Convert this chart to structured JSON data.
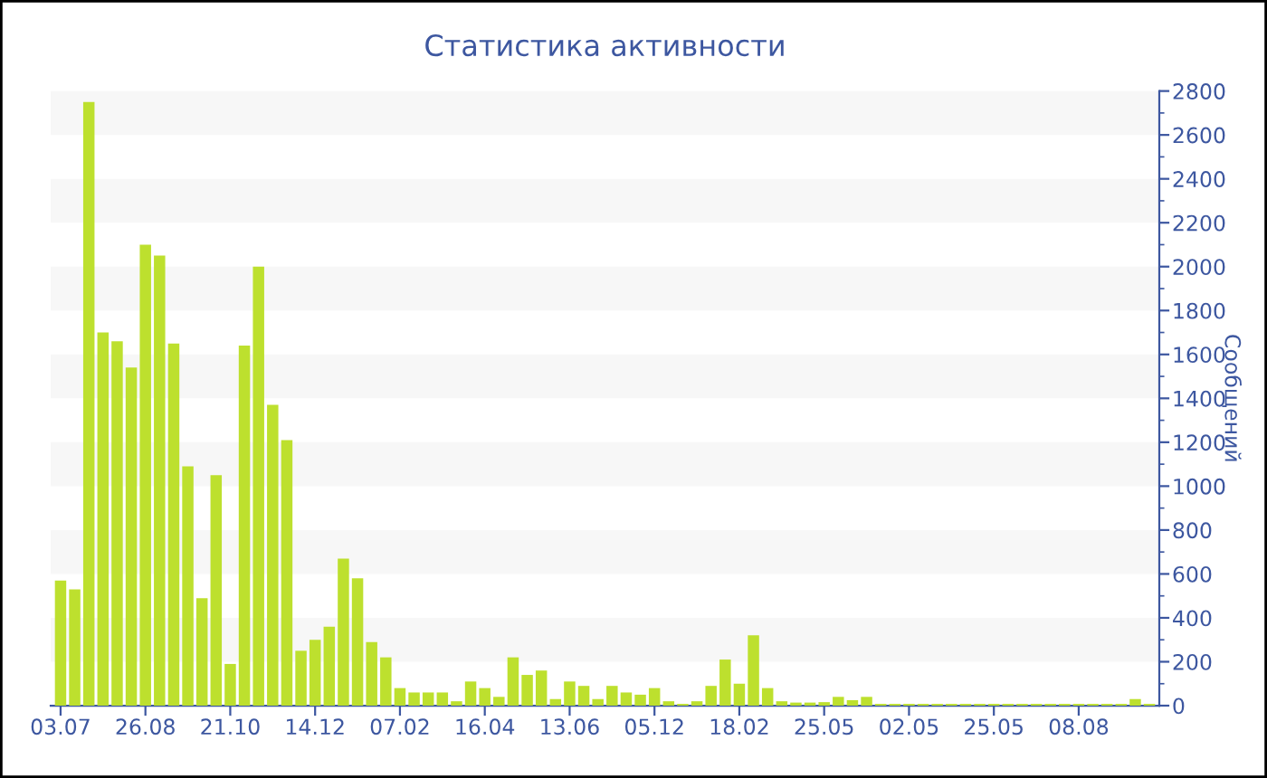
{
  "chart_data": {
    "type": "bar",
    "title": "Статистика активности",
    "ylabel": "Сообщений",
    "categories": [
      "03.07",
      null,
      null,
      null,
      null,
      null,
      "26.08",
      null,
      null,
      null,
      null,
      null,
      "21.10",
      null,
      null,
      null,
      null,
      null,
      "14.12",
      null,
      null,
      null,
      null,
      null,
      "07.02",
      null,
      null,
      null,
      null,
      null,
      "16.04",
      null,
      null,
      null,
      null,
      null,
      "13.06",
      null,
      null,
      null,
      null,
      null,
      "05.12",
      null,
      null,
      null,
      null,
      null,
      "18.02",
      null,
      null,
      null,
      null,
      null,
      "25.05",
      null,
      null,
      null,
      null,
      null,
      "02.05",
      null,
      null,
      null,
      null,
      null,
      "25.05",
      null,
      null,
      null,
      null,
      null,
      "08.08",
      null,
      null,
      null,
      null,
      null
    ],
    "values": [
      570,
      530,
      2750,
      1700,
      1660,
      1540,
      2100,
      2050,
      1650,
      1090,
      490,
      1050,
      190,
      1640,
      2000,
      1370,
      1210,
      250,
      300,
      360,
      670,
      580,
      290,
      220,
      80,
      60,
      60,
      60,
      20,
      110,
      80,
      40,
      220,
      140,
      160,
      30,
      110,
      90,
      30,
      90,
      60,
      50,
      80,
      20,
      8,
      20,
      90,
      210,
      100,
      320,
      80,
      20,
      14,
      14,
      16,
      40,
      25,
      40,
      8,
      8,
      8,
      8,
      8,
      8,
      8,
      8,
      8,
      8,
      8,
      8,
      8,
      8,
      8,
      8,
      8,
      8,
      30,
      8
    ],
    "color": "#bde02e",
    "ylim": [
      0,
      2800
    ],
    "yticks": [
      0,
      200,
      400,
      600,
      800,
      1000,
      1200,
      1400,
      1600,
      1800,
      2000,
      2200,
      2400,
      2600,
      2800
    ],
    "bands": [
      {
        "axis": "y",
        "from": 200,
        "to": 400,
        "color": "#f7f7f7"
      },
      {
        "axis": "y",
        "from": 600,
        "to": 800,
        "color": "#f7f7f7"
      },
      {
        "axis": "y",
        "from": 1000,
        "to": 1200,
        "color": "#f7f7f7"
      },
      {
        "axis": "y",
        "from": 1400,
        "to": 1600,
        "color": "#f7f7f7"
      },
      {
        "axis": "y",
        "from": 1800,
        "to": 2000,
        "color": "#f7f7f7"
      },
      {
        "axis": "y",
        "from": 2200,
        "to": 2400,
        "color": "#f7f7f7"
      },
      {
        "axis": "y",
        "from": 2600,
        "to": 2800,
        "color": "#f7f7f7"
      }
    ],
    "legend": false
  }
}
